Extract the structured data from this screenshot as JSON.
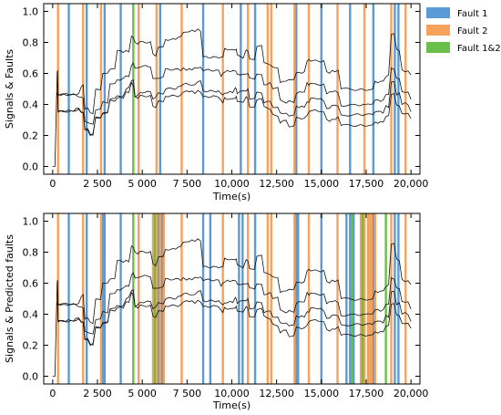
{
  "colors": {
    "fault1": "#5b9bd5",
    "fault2": "#f6a25c",
    "fault12": "#6abf4b",
    "signal": "#111111"
  },
  "legend": {
    "fault1": "Fault 1",
    "fault2": "Fault 2",
    "fault12": "Fault 1&2"
  },
  "chart_data": [
    {
      "type": "line",
      "xlabel": "Time(s)",
      "ylabel": "Signals & Faults",
      "xlim": [
        -500,
        20500
      ],
      "ylim": [
        -0.05,
        1.05
      ],
      "xticks": [
        0,
        2500,
        5000,
        7500,
        10000,
        12500,
        15000,
        17500,
        20000
      ],
      "xtick_labels": [
        "0",
        "2 500",
        "5 000",
        "7 500",
        "10,000",
        "12,500",
        "15,000",
        "17,500",
        "20,000"
      ],
      "yticks": [
        0.0,
        0.2,
        0.4,
        0.6,
        0.8,
        1.0
      ],
      "ytick_labels": [
        "0.0",
        "0.2",
        "0.4",
        "0.6",
        "0.8",
        "1.0"
      ],
      "legend_position": "outside-right",
      "fault_lines": {
        "fault1": [
          900,
          1900,
          2900,
          3800,
          6000,
          8400,
          10500,
          11300,
          13600,
          15000,
          16600,
          17900,
          19100,
          19300
        ],
        "fault2": [
          300,
          1700,
          2700,
          4800,
          5800,
          7200,
          9500,
          10900,
          12000,
          12200,
          13500,
          14300,
          15900,
          17400,
          18900,
          19700
        ],
        "fault12": [
          4500
        ]
      },
      "series": [
        {
          "values": [
            [
              0,
              0
            ],
            [
              250,
              0.61
            ],
            [
              300,
              0.46
            ],
            [
              1300,
              0.47
            ],
            [
              1600,
              0.52
            ],
            [
              1800,
              0.37
            ],
            [
              2100,
              0.34
            ],
            [
              2400,
              0.49
            ],
            [
              2800,
              0.6
            ],
            [
              3200,
              0.62
            ],
            [
              3600,
              0.74
            ],
            [
              4100,
              0.75
            ],
            [
              4400,
              0.84
            ],
            [
              4600,
              0.79
            ],
            [
              4900,
              0.8
            ],
            [
              5600,
              0.72
            ],
            [
              5900,
              0.77
            ],
            [
              6300,
              0.82
            ],
            [
              7000,
              0.84
            ],
            [
              7300,
              0.87
            ],
            [
              8100,
              0.88
            ],
            [
              8400,
              0.71
            ],
            [
              9400,
              0.71
            ],
            [
              9600,
              0.75
            ],
            [
              10200,
              0.76
            ],
            [
              10300,
              0.71
            ],
            [
              10800,
              0.75
            ],
            [
              11000,
              0.69
            ],
            [
              11400,
              0.77
            ],
            [
              11800,
              0.66
            ],
            [
              12300,
              0.64
            ],
            [
              12700,
              0.55
            ],
            [
              13200,
              0.56
            ],
            [
              13600,
              0.6
            ],
            [
              14200,
              0.68
            ],
            [
              14400,
              0.69
            ],
            [
              14800,
              0.68
            ],
            [
              15300,
              0.6
            ],
            [
              15600,
              0.62
            ],
            [
              16100,
              0.5
            ],
            [
              16500,
              0.5
            ],
            [
              16900,
              0.5
            ],
            [
              17600,
              0.5
            ],
            [
              18000,
              0.55
            ],
            [
              18600,
              0.58
            ],
            [
              18900,
              0.85
            ],
            [
              19200,
              0.75
            ],
            [
              19500,
              0.62
            ],
            [
              20000,
              0.58
            ]
          ]
        },
        {
          "values": [
            [
              250,
              0.54
            ],
            [
              300,
              0.46
            ],
            [
              1300,
              0.45
            ],
            [
              1600,
              0.44
            ],
            [
              1800,
              0.29
            ],
            [
              2100,
              0.27
            ],
            [
              2400,
              0.36
            ],
            [
              2800,
              0.41
            ],
            [
              3200,
              0.54
            ],
            [
              3600,
              0.56
            ],
            [
              4100,
              0.58
            ],
            [
              4400,
              0.66
            ],
            [
              4600,
              0.63
            ],
            [
              4900,
              0.64
            ],
            [
              5600,
              0.56
            ],
            [
              5900,
              0.57
            ],
            [
              6300,
              0.62
            ],
            [
              7000,
              0.62
            ],
            [
              7300,
              0.63
            ],
            [
              8100,
              0.63
            ],
            [
              8400,
              0.62
            ],
            [
              9400,
              0.59
            ],
            [
              9600,
              0.61
            ],
            [
              10200,
              0.61
            ],
            [
              10300,
              0.59
            ],
            [
              10800,
              0.6
            ],
            [
              11000,
              0.56
            ],
            [
              11400,
              0.6
            ],
            [
              11800,
              0.53
            ],
            [
              12300,
              0.5
            ],
            [
              12700,
              0.42
            ],
            [
              13200,
              0.42
            ],
            [
              13600,
              0.48
            ],
            [
              14200,
              0.53
            ],
            [
              14400,
              0.54
            ],
            [
              14800,
              0.53
            ],
            [
              15300,
              0.47
            ],
            [
              15600,
              0.48
            ],
            [
              16100,
              0.4
            ],
            [
              16500,
              0.4
            ],
            [
              16900,
              0.4
            ],
            [
              17600,
              0.41
            ],
            [
              18000,
              0.43
            ],
            [
              18600,
              0.47
            ],
            [
              18900,
              0.63
            ],
            [
              19200,
              0.56
            ],
            [
              19500,
              0.48
            ],
            [
              20000,
              0.44
            ]
          ]
        },
        {
          "values": [
            [
              250,
              0.47
            ],
            [
              300,
              0.36
            ],
            [
              1300,
              0.37
            ],
            [
              1600,
              0.35
            ],
            [
              1800,
              0.24
            ],
            [
              2100,
              0.21
            ],
            [
              2400,
              0.32
            ],
            [
              2800,
              0.35
            ],
            [
              3200,
              0.43
            ],
            [
              3600,
              0.45
            ],
            [
              4100,
              0.5
            ],
            [
              4400,
              0.55
            ],
            [
              4600,
              0.46
            ],
            [
              4900,
              0.48
            ],
            [
              5600,
              0.44
            ],
            [
              5900,
              0.47
            ],
            [
              6300,
              0.5
            ],
            [
              7000,
              0.51
            ],
            [
              7300,
              0.53
            ],
            [
              8100,
              0.55
            ],
            [
              8400,
              0.48
            ],
            [
              9400,
              0.46
            ],
            [
              9600,
              0.48
            ],
            [
              10200,
              0.5
            ],
            [
              10300,
              0.48
            ],
            [
              10800,
              0.49
            ],
            [
              11000,
              0.44
            ],
            [
              11400,
              0.48
            ],
            [
              11800,
              0.42
            ],
            [
              12300,
              0.38
            ],
            [
              12700,
              0.34
            ],
            [
              13200,
              0.33
            ],
            [
              13600,
              0.39
            ],
            [
              14200,
              0.42
            ],
            [
              14400,
              0.43
            ],
            [
              14800,
              0.43
            ],
            [
              15300,
              0.38
            ],
            [
              15600,
              0.39
            ],
            [
              16100,
              0.33
            ],
            [
              16500,
              0.33
            ],
            [
              16900,
              0.33
            ],
            [
              17600,
              0.33
            ],
            [
              18000,
              0.35
            ],
            [
              18600,
              0.39
            ],
            [
              18900,
              0.55
            ],
            [
              19200,
              0.47
            ],
            [
              19500,
              0.4
            ],
            [
              20000,
              0.36
            ]
          ]
        },
        {
          "values": [
            [
              250,
              0.47
            ],
            [
              300,
              0.36
            ],
            [
              1300,
              0.37
            ],
            [
              1600,
              0.35
            ],
            [
              1800,
              0.24
            ],
            [
              2100,
              0.21
            ],
            [
              2400,
              0.32
            ],
            [
              2800,
              0.35
            ],
            [
              3200,
              0.43
            ],
            [
              3600,
              0.45
            ],
            [
              4100,
              0.48
            ],
            [
              4400,
              0.53
            ],
            [
              4600,
              0.45
            ],
            [
              4900,
              0.46
            ],
            [
              5600,
              0.39
            ],
            [
              5900,
              0.42
            ],
            [
              6300,
              0.46
            ],
            [
              7000,
              0.46
            ],
            [
              7300,
              0.48
            ],
            [
              8100,
              0.49
            ],
            [
              8400,
              0.45
            ],
            [
              9400,
              0.42
            ],
            [
              9600,
              0.44
            ],
            [
              10200,
              0.45
            ],
            [
              10300,
              0.42
            ],
            [
              10800,
              0.44
            ],
            [
              11000,
              0.39
            ],
            [
              11400,
              0.43
            ],
            [
              11800,
              0.38
            ],
            [
              12300,
              0.33
            ],
            [
              12700,
              0.29
            ],
            [
              13200,
              0.26
            ],
            [
              13600,
              0.31
            ],
            [
              14200,
              0.34
            ],
            [
              14400,
              0.36
            ],
            [
              14800,
              0.35
            ],
            [
              15300,
              0.3
            ],
            [
              15600,
              0.31
            ],
            [
              16100,
              0.26
            ],
            [
              16500,
              0.26
            ],
            [
              16900,
              0.26
            ],
            [
              17600,
              0.26
            ],
            [
              18000,
              0.28
            ],
            [
              18600,
              0.32
            ],
            [
              18900,
              0.47
            ],
            [
              19200,
              0.4
            ],
            [
              19500,
              0.34
            ],
            [
              20000,
              0.3
            ]
          ]
        }
      ]
    },
    {
      "type": "line",
      "xlabel": "Time(s)",
      "ylabel": "Signals & Predicted faults",
      "xlim": [
        -500,
        20500
      ],
      "ylim": [
        -0.05,
        1.05
      ],
      "xticks": [
        0,
        2500,
        5000,
        7500,
        10000,
        12500,
        15000,
        17500,
        20000
      ],
      "xtick_labels": [
        "0",
        "2 500",
        "5 000",
        "7 500",
        "10,000",
        "12,500",
        "15,000",
        "17,500",
        "20,000"
      ],
      "yticks": [
        0.0,
        0.2,
        0.4,
        0.6,
        0.8,
        1.0
      ],
      "ytick_labels": [
        "0.0",
        "0.2",
        "0.4",
        "0.6",
        "0.8",
        "1.0"
      ],
      "fault_lines": {
        "fault1": [
          900,
          1900,
          2800,
          2900,
          3800,
          5900,
          6100,
          8400,
          8800,
          10400,
          10600,
          11300,
          13600,
          13700,
          15000,
          16400,
          16600,
          16800,
          17900,
          19100,
          19300
        ],
        "fault2": [
          300,
          1700,
          2700,
          4800,
          5600,
          5800,
          6000,
          6200,
          7200,
          9500,
          10900,
          12000,
          12200,
          13500,
          14300,
          15900,
          17200,
          17400,
          17600,
          17700,
          17800,
          18000,
          18900,
          19700
        ],
        "fault12": [
          4500,
          5700,
          16700,
          17300,
          18600
        ]
      },
      "series": "same signals as upper panel"
    }
  ]
}
